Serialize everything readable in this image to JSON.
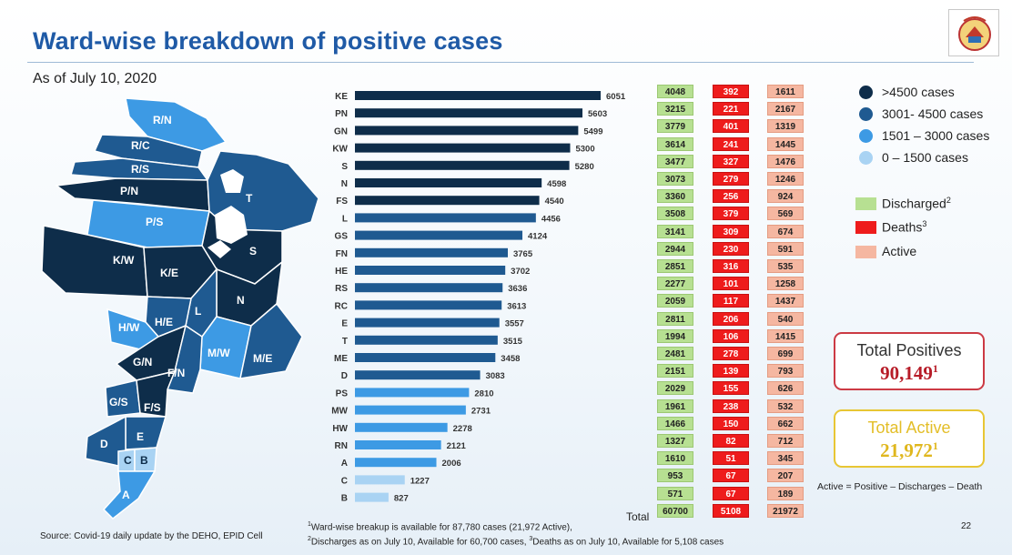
{
  "title": "Ward-wise breakdown of positive cases",
  "subtitle": "As of July 10, 2020",
  "logo_icon": "municipal-corporation-seal-icon",
  "colors": {
    "title": "#1f5aa6",
    "tier_high": "#0e2d4a",
    "tier_mid": "#1f5a91",
    "tier_low": "#3d9ae4",
    "tier_min": "#a9d3f3",
    "discharged": "#b7e092",
    "deaths": "#ee1c1c",
    "active": "#f5b7a1"
  },
  "legend": {
    "tiers": [
      {
        "label": ">4500 cases",
        "color": "#0e2d4a"
      },
      {
        "label": "3001- 4500 cases",
        "color": "#1f5a91"
      },
      {
        "label": "1501 – 3000 cases",
        "color": "#3d9ae4"
      },
      {
        "label": "0 – 1500 cases",
        "color": "#a9d3f3"
      }
    ],
    "status": [
      {
        "label": "Discharged",
        "sup": "2",
        "color": "#b7e092"
      },
      {
        "label": "Deaths",
        "sup": "3",
        "color": "#ee1c1c"
      },
      {
        "label": "Active",
        "sup": "",
        "color": "#f5b7a1"
      }
    ]
  },
  "map": {
    "labels": [
      "R/N",
      "R/C",
      "R/S",
      "P/N",
      "P/S",
      "T",
      "S",
      "K/W",
      "K/E",
      "N",
      "L",
      "H/E",
      "H/W",
      "M/W",
      "M/E",
      "G/N",
      "F/N",
      "G/S",
      "F/S",
      "E",
      "D",
      "C",
      "B",
      "A"
    ]
  },
  "chart_data": {
    "type": "bar",
    "orientation": "horizontal",
    "title": "Ward-wise breakdown of positive cases",
    "categories": [
      "KE",
      "PN",
      "GN",
      "KW",
      "S",
      "N",
      "FS",
      "L",
      "GS",
      "FN",
      "HE",
      "RS",
      "RC",
      "E",
      "T",
      "ME",
      "D",
      "PS",
      "MW",
      "HW",
      "RN",
      "A",
      "C",
      "B"
    ],
    "values": [
      6051,
      5603,
      5499,
      5300,
      5280,
      4598,
      4540,
      4456,
      4124,
      3765,
      3702,
      3636,
      3613,
      3557,
      3515,
      3458,
      3083,
      2810,
      2731,
      2278,
      2121,
      2006,
      1227,
      827
    ],
    "xlim": [
      0,
      6051
    ],
    "table": {
      "discharged": [
        4048,
        3215,
        3779,
        3614,
        3477,
        3073,
        3360,
        3508,
        3141,
        2944,
        2851,
        2277,
        2059,
        2811,
        1994,
        2481,
        2151,
        2029,
        1961,
        1466,
        1327,
        1610,
        953,
        571
      ],
      "deaths": [
        392,
        221,
        401,
        241,
        327,
        279,
        256,
        379,
        309,
        230,
        316,
        101,
        117,
        206,
        106,
        278,
        139,
        155,
        238,
        150,
        82,
        51,
        67,
        67
      ],
      "active": [
        1611,
        2167,
        1319,
        1445,
        1476,
        1246,
        924,
        569,
        674,
        591,
        535,
        1258,
        1437,
        540,
        1415,
        699,
        793,
        626,
        532,
        662,
        712,
        345,
        207,
        189
      ]
    },
    "totals": {
      "label": "Total",
      "discharged": "60700",
      "deaths": "5108",
      "active": "21972"
    }
  },
  "summary": {
    "total_positives_label": "Total Positives",
    "total_positives_value": "90,149",
    "total_positives_sup": "1",
    "total_active_label": "Total Active",
    "total_active_value": "21,972",
    "total_active_sup": "1",
    "formula": "Active = Positive – Discharges – Death"
  },
  "footnotes": {
    "source": "Source: Covid-19 daily update by the DEHO, EPID Cell",
    "note1": "Ward-wise breakup is available for 87,780 cases (21,972 Active),",
    "note2a": "Discharges as on July 10, Available for 60,700 cases, ",
    "note2b": "Deaths as on July 10, Available for 5,108 cases",
    "page": "22"
  }
}
